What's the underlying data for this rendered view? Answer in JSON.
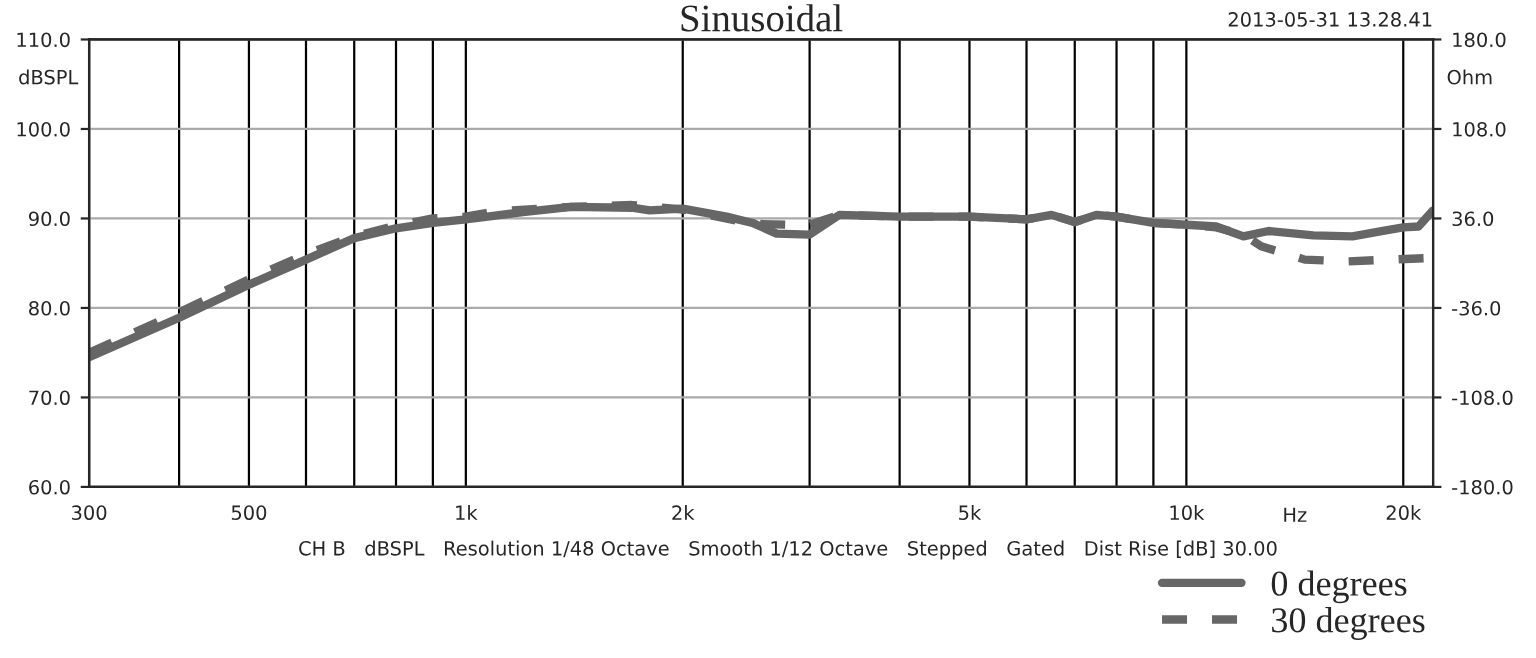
{
  "chart_data": {
    "type": "line",
    "title": "Sinusoidal",
    "xlabel": "Hz",
    "ylabel": "dBSPL",
    "y2label": "Ohm",
    "annotations": [
      "2013-05-31 13.28.41",
      "CH B   dBSPL   Resolution 1/48 Octave   Smooth 1/12 Octave   Stepped   Gated   Dist Rise [dB] 30.00"
    ],
    "log": "x",
    "xlim": [
      300,
      22000
    ],
    "xticks": [
      {
        "value": 300,
        "label": "300"
      },
      {
        "value": 400,
        "label": null
      },
      {
        "value": 500,
        "label": "500"
      },
      {
        "value": 600,
        "label": null
      },
      {
        "value": 700,
        "label": null
      },
      {
        "value": 800,
        "label": null
      },
      {
        "value": 900,
        "label": null
      },
      {
        "value": 1000,
        "label": "1k"
      },
      {
        "value": 2000,
        "label": "2k"
      },
      {
        "value": 3000,
        "label": null
      },
      {
        "value": 4000,
        "label": null
      },
      {
        "value": 5000,
        "label": "5k"
      },
      {
        "value": 6000,
        "label": null
      },
      {
        "value": 7000,
        "label": null
      },
      {
        "value": 8000,
        "label": null
      },
      {
        "value": 9000,
        "label": null
      },
      {
        "value": 10000,
        "label": "10k"
      },
      {
        "value": 20000,
        "label": "20k"
      }
    ],
    "ylim": [
      60,
      110
    ],
    "yticks": [
      {
        "value": 60,
        "label": "60.0"
      },
      {
        "value": 70,
        "label": "70.0"
      },
      {
        "value": 80,
        "label": "80.0"
      },
      {
        "value": 90,
        "label": "90.0"
      },
      {
        "value": 100,
        "label": "100.0"
      },
      {
        "value": 110,
        "label": "110.0"
      }
    ],
    "y2lim": [
      -180,
      180
    ],
    "y2ticks": [
      {
        "value": -180,
        "label": "-180.0"
      },
      {
        "value": -108,
        "label": "-108.0"
      },
      {
        "value": -36,
        "label": "-36.0"
      },
      {
        "value": 36,
        "label": "36.0"
      },
      {
        "value": 108,
        "label": "108.0"
      },
      {
        "value": 180,
        "label": "180.0"
      }
    ],
    "grid": true,
    "legend": "bottom right",
    "series": [
      {
        "name": "0 degrees",
        "color": "#666666",
        "line_style": "solid",
        "x": [
          300,
          400,
          500,
          600,
          700,
          800,
          900,
          1000,
          1200,
          1400,
          1700,
          1800,
          2000,
          2300,
          2500,
          2700,
          3000,
          3300,
          4000,
          5000,
          6000,
          6500,
          7000,
          7500,
          8000,
          9000,
          10000,
          11000,
          12000,
          13000,
          15000,
          17000,
          19000,
          20000,
          21000,
          22000
        ],
        "values": [
          74.5,
          78.9,
          82.6,
          85.4,
          87.8,
          88.9,
          89.5,
          89.9,
          90.7,
          91.3,
          91.2,
          90.9,
          91.1,
          90.2,
          89.5,
          88.3,
          88.2,
          90.4,
          90.2,
          90.2,
          89.9,
          90.4,
          89.6,
          90.4,
          90.2,
          89.5,
          89.3,
          89.1,
          88.0,
          88.6,
          88.1,
          88.0,
          88.7,
          89.0,
          89.1,
          90.9
        ]
      },
      {
        "name": "30 degrees",
        "color": "#666666",
        "line_style": "dashed",
        "x": [
          300,
          400,
          500,
          600,
          700,
          800,
          900,
          1000,
          1100,
          1400,
          1700,
          2000,
          2500,
          2800,
          3000,
          3300,
          4000,
          5000,
          6000,
          6500,
          7000,
          7500,
          8000,
          9000,
          10000,
          11000,
          12000,
          12700,
          14600,
          16700,
          19100,
          22000
        ],
        "values": [
          75.0,
          79.5,
          83.2,
          86.0,
          88.0,
          89.2,
          90.0,
          90.2,
          90.8,
          91.3,
          91.5,
          91.0,
          89.4,
          89.3,
          89.3,
          90.4,
          90.2,
          90.2,
          89.9,
          90.4,
          89.6,
          90.4,
          90.2,
          89.5,
          89.3,
          89.0,
          88.2,
          86.9,
          85.4,
          85.2,
          85.4,
          85.6
        ]
      }
    ]
  }
}
